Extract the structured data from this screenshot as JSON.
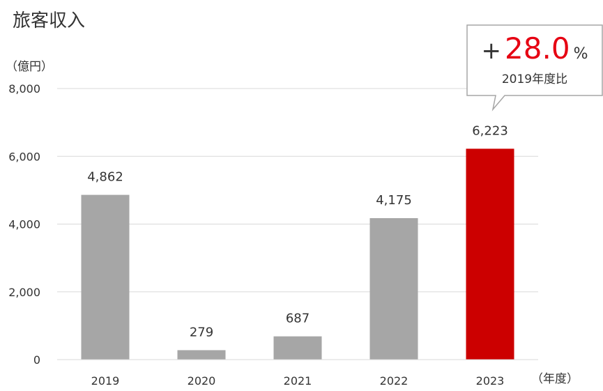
{
  "chart_data": {
    "type": "bar",
    "title": "旅客収入",
    "y_unit": "（億円）",
    "x_unit": "（年度）",
    "categories": [
      "2019",
      "2020",
      "2021",
      "2022",
      "2023"
    ],
    "values": [
      4862,
      279,
      687,
      4175,
      6223
    ],
    "value_labels": [
      "4,862",
      "279",
      "687",
      "4,175",
      "6,223"
    ],
    "ylim": [
      0,
      8000
    ],
    "yticks": [
      0,
      2000,
      4000,
      6000,
      8000
    ],
    "ytick_labels": [
      "0",
      "2,000",
      "4,000",
      "6,000",
      "8,000"
    ],
    "grid": true,
    "colors": {
      "default": "#a6a6a6",
      "highlight": "#cc0000"
    },
    "highlight_index": 4,
    "callout": {
      "sign": "+",
      "value": "28.0",
      "unit": "%",
      "caption": "2019年度比",
      "value_color": "#e60012",
      "border_color": "#a6a6a6"
    }
  }
}
